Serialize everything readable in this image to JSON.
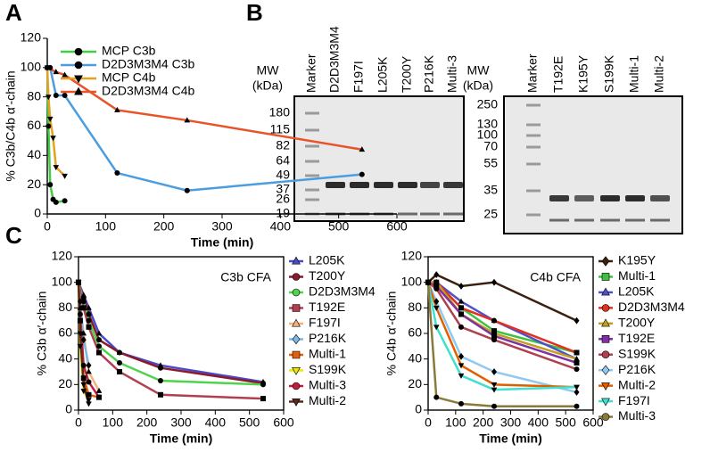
{
  "panels": {
    "a": "A",
    "b": "B",
    "c": "C"
  },
  "gels": [
    {
      "mw_title": [
        "MW",
        "(kDa)"
      ],
      "mw": [
        180,
        115,
        82,
        64,
        49,
        37,
        26,
        19
      ],
      "lanes": [
        "Marker",
        "D2D3M3M4",
        "F197I",
        "L205K",
        "T200Y",
        "P216K",
        "Multi-3"
      ]
    },
    {
      "mw_title": [
        "MW",
        "(kDa)"
      ],
      "mw": [
        250,
        130,
        100,
        70,
        55,
        35,
        25
      ],
      "lanes": [
        "Marker",
        "T192E",
        "K195Y",
        "S199K",
        "Multi-1",
        "Multi-2"
      ]
    }
  ],
  "chart_data": [
    {
      "type": "line",
      "xlabel": "Time (min)",
      "ylabel": "% C3b/C4b α′-chain",
      "xlim": [
        0,
        600
      ],
      "ylim": [
        0,
        120
      ],
      "xticks": [
        0,
        100,
        200,
        300,
        400,
        500,
        600
      ],
      "yticks": [
        0,
        20,
        40,
        60,
        80,
        100,
        120
      ],
      "legend": "upper left",
      "frame": false,
      "marker_color": "#000000",
      "series": [
        {
          "name": "MCP C3b",
          "color": "#44cc44",
          "marker": "circle",
          "x": [
            0,
            2,
            5,
            10,
            15,
            30
          ],
          "values": [
            100,
            60,
            20,
            10,
            8,
            9
          ]
        },
        {
          "name": "D2D3M3M4 C3b",
          "color": "#4a9de0",
          "marker": "circle",
          "x": [
            0,
            5,
            15,
            30,
            120,
            240,
            540
          ],
          "values": [
            100,
            100,
            81,
            81,
            28,
            16,
            27
          ]
        },
        {
          "name": "MCP C4b",
          "color": "#e8a020",
          "marker": "triangle-down",
          "x": [
            0,
            2,
            5,
            10,
            15,
            30
          ],
          "values": [
            100,
            80,
            65,
            52,
            32,
            26
          ]
        },
        {
          "name": "D2D3M3M4 C4b",
          "color": "#e8532a",
          "marker": "triangle",
          "x": [
            0,
            15,
            30,
            120,
            240,
            540
          ],
          "values": [
            100,
            97,
            95,
            71,
            64,
            44
          ]
        }
      ]
    },
    {
      "type": "line",
      "xlabel": "Time (min)",
      "ylabel": "% C3b α′-chain",
      "annotation": "C3b CFA",
      "xlim": [
        0,
        600
      ],
      "ylim": [
        0,
        120
      ],
      "xticks": [
        0,
        100,
        200,
        300,
        400,
        500,
        600
      ],
      "yticks": [
        0,
        20,
        40,
        60,
        80,
        100,
        120
      ],
      "legend": "outside right",
      "frame": true,
      "marker_color": "#000000",
      "series": [
        {
          "name": "L205K",
          "color": "#4a4ac8",
          "marker": "triangle",
          "x": [
            0,
            15,
            30,
            60,
            120,
            240,
            540
          ],
          "values": [
            100,
            90,
            80,
            60,
            45,
            35,
            22
          ]
        },
        {
          "name": "T200Y",
          "color": "#8b1a2a",
          "marker": "circle",
          "x": [
            0,
            15,
            30,
            60,
            120,
            240,
            540
          ],
          "values": [
            100,
            88,
            75,
            55,
            45,
            33,
            21
          ]
        },
        {
          "name": "D2D3M3M4",
          "color": "#4fd34f",
          "marker": "circle",
          "x": [
            0,
            15,
            30,
            60,
            120,
            240,
            540
          ],
          "values": [
            100,
            85,
            70,
            50,
            37,
            23,
            20
          ]
        },
        {
          "name": "T192E",
          "color": "#b04050",
          "marker": "square",
          "x": [
            0,
            15,
            30,
            60,
            120,
            240,
            540
          ],
          "values": [
            100,
            80,
            65,
            45,
            30,
            12,
            9
          ]
        },
        {
          "name": "F197I",
          "color": "#f4b183",
          "marker": "triangle",
          "x": [
            0,
            5,
            15,
            30,
            60
          ],
          "values": [
            100,
            80,
            60,
            30,
            15
          ]
        },
        {
          "name": "P216K",
          "color": "#7ab8e8",
          "marker": "diamond",
          "x": [
            0,
            5,
            15,
            30
          ],
          "values": [
            100,
            85,
            55,
            35
          ]
        },
        {
          "name": "Multi-1",
          "color": "#e06010",
          "marker": "square",
          "x": [
            0,
            5,
            15,
            30,
            60
          ],
          "values": [
            100,
            70,
            25,
            12,
            10
          ]
        },
        {
          "name": "S199K",
          "color": "#e8e800",
          "marker": "triangle-down",
          "x": [
            0,
            5,
            15,
            30
          ],
          "values": [
            100,
            50,
            15,
            8
          ]
        },
        {
          "name": "Multi-3",
          "color": "#c0203c",
          "marker": "circle",
          "x": [
            0,
            5,
            15,
            30,
            60
          ],
          "values": [
            100,
            75,
            35,
            22,
            10
          ]
        },
        {
          "name": "Multi-2",
          "color": "#5c2a1a",
          "marker": "triangle-down",
          "x": [
            0,
            5,
            15,
            30
          ],
          "values": [
            100,
            60,
            20,
            5
          ]
        }
      ]
    },
    {
      "type": "line",
      "xlabel": "Time (min)",
      "ylabel": "% C4b α′-chain",
      "annotation": "C4b CFA",
      "xlim": [
        0,
        600
      ],
      "ylim": [
        0,
        120
      ],
      "xticks": [
        0,
        100,
        200,
        300,
        400,
        500,
        600
      ],
      "yticks": [
        0,
        20,
        40,
        60,
        80,
        100,
        120
      ],
      "legend": "outside right",
      "frame": true,
      "marker_color": "#000000",
      "series": [
        {
          "name": "K195Y",
          "color": "#3b2010",
          "marker": "diamond",
          "x": [
            0,
            30,
            120,
            240,
            540
          ],
          "values": [
            100,
            106,
            97,
            100,
            70
          ]
        },
        {
          "name": "Multi-1",
          "color": "#40c040",
          "marker": "square",
          "x": [
            0,
            30,
            120,
            240,
            540
          ],
          "values": [
            100,
            100,
            80,
            62,
            45
          ]
        },
        {
          "name": "L205K",
          "color": "#5050c8",
          "marker": "triangle",
          "x": [
            0,
            30,
            120,
            240,
            540
          ],
          "values": [
            100,
            100,
            85,
            70,
            40
          ]
        },
        {
          "name": "D2D3M3M4",
          "color": "#e03020",
          "marker": "circle",
          "x": [
            0,
            30,
            120,
            240,
            540
          ],
          "values": [
            100,
            100,
            80,
            70,
            45
          ]
        },
        {
          "name": "T200Y",
          "color": "#c0a020",
          "marker": "triangle",
          "x": [
            0,
            30,
            120,
            240,
            540
          ],
          "values": [
            100,
            100,
            75,
            60,
            40
          ]
        },
        {
          "name": "T192E",
          "color": "#8030a0",
          "marker": "square",
          "x": [
            0,
            30,
            120,
            240,
            540
          ],
          "values": [
            100,
            97,
            75,
            58,
            37
          ]
        },
        {
          "name": "S199K",
          "color": "#b04050",
          "marker": "circle",
          "x": [
            0,
            30,
            120,
            240,
            540
          ],
          "values": [
            100,
            95,
            65,
            55,
            32
          ]
        },
        {
          "name": "P216K",
          "color": "#90c8f0",
          "marker": "diamond",
          "x": [
            0,
            30,
            120,
            240,
            540
          ],
          "values": [
            100,
            85,
            42,
            30,
            14
          ]
        },
        {
          "name": "Multi-2",
          "color": "#e06000",
          "marker": "triangle-down",
          "x": [
            0,
            30,
            120,
            240,
            540
          ],
          "values": [
            100,
            80,
            35,
            20,
            18
          ]
        },
        {
          "name": "F197I",
          "color": "#40e0d0",
          "marker": "triangle-down",
          "x": [
            0,
            30,
            120,
            240,
            540
          ],
          "values": [
            100,
            65,
            27,
            16,
            18
          ]
        },
        {
          "name": "Multi-3",
          "color": "#8a7a3a",
          "marker": "circle",
          "x": [
            0,
            30,
            120,
            240,
            540
          ],
          "values": [
            100,
            10,
            5,
            3,
            3
          ]
        }
      ]
    }
  ]
}
